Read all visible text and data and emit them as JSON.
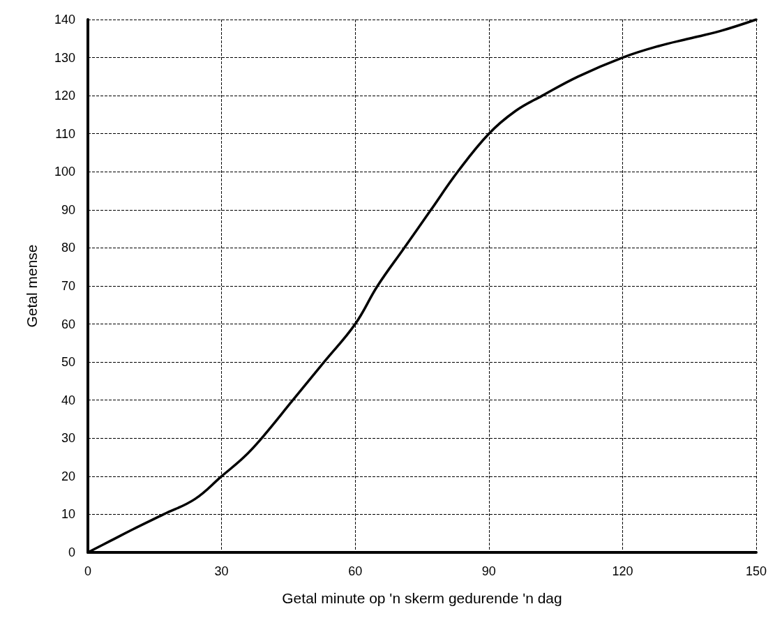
{
  "chart_data": {
    "type": "line",
    "xlabel": "Getal minute op 'n skerm gedurende 'n dag",
    "ylabel": "Getal mense",
    "x": [
      0,
      5,
      10,
      17,
      24,
      30,
      35,
      39,
      46,
      53,
      60,
      65,
      71,
      77,
      83,
      90,
      96,
      102,
      110,
      120,
      128,
      135,
      142,
      150
    ],
    "series": [
      {
        "color": "#000000",
        "values": [
          0,
          3,
          6,
          10,
          14,
          20,
          25,
          30,
          40,
          50,
          60,
          70,
          80,
          90,
          100,
          110,
          116,
          120,
          125,
          130,
          133,
          135,
          137,
          140
        ]
      }
    ],
    "xlim": [
      0,
      150
    ],
    "xticks": [
      0,
      30,
      60,
      90,
      120,
      150
    ],
    "ylim": [
      0,
      140
    ],
    "yticks": [
      0,
      10,
      20,
      30,
      40,
      50,
      60,
      70,
      80,
      90,
      100,
      110,
      120,
      130,
      140
    ],
    "grid": true,
    "marker": "none",
    "line_style": "solid"
  }
}
